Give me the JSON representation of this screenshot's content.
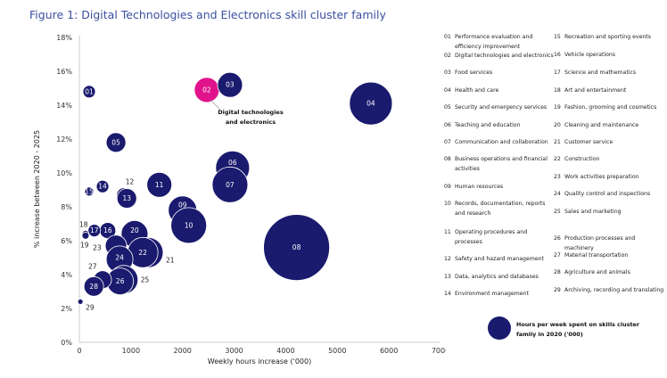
{
  "chart_data": {
    "type": "scatter",
    "subtype": "bubble",
    "title": "Figure 1: Digital Technologies and Electronics skill cluster family",
    "xlabel": "Weekly hours increase ('000)",
    "ylabel": "% increase between 2020 - 2025",
    "xlim": [
      0,
      7000
    ],
    "ylim": [
      0,
      18
    ],
    "xticks": [
      "0",
      "1000",
      "2000",
      "3000",
      "4000",
      "5000",
      "6000",
      "7000"
    ],
    "yticks": [
      "0%",
      "2%",
      "4%",
      "6%",
      "8%",
      "10%",
      "12%",
      "14%",
      "16%",
      "18%"
    ],
    "grid": false,
    "colors": {
      "default": "#1a1a6e",
      "highlight": "#e0138c"
    },
    "size_legend": "Hours per week spent on skills cluster family in 2020 ('000)",
    "annotation": {
      "id": "02",
      "lines": [
        "Digital technologies",
        "and electronics"
      ]
    },
    "points": [
      {
        "id": "01",
        "x": 190,
        "y": 14.8,
        "size": 49,
        "label_inside": true
      },
      {
        "id": "02",
        "x": 2470,
        "y": 14.9,
        "size": 196,
        "label_inside": true,
        "highlight": true
      },
      {
        "id": "03",
        "x": 2920,
        "y": 15.2,
        "size": 196,
        "label_inside": true
      },
      {
        "id": "04",
        "x": 5650,
        "y": 14.1,
        "size": 576,
        "label_inside": true
      },
      {
        "id": "05",
        "x": 710,
        "y": 11.8,
        "size": 121,
        "label_inside": true
      },
      {
        "id": "06",
        "x": 2970,
        "y": 10.3,
        "size": 361,
        "label_inside": true,
        "label_dy": -6
      },
      {
        "id": "07",
        "x": 2920,
        "y": 9.3,
        "size": 400,
        "label_inside": true
      },
      {
        "id": "08",
        "x": 4210,
        "y": 5.6,
        "size": 1369,
        "label_inside": true
      },
      {
        "id": "09",
        "x": 2000,
        "y": 7.8,
        "size": 256,
        "label_inside": true,
        "label_dy": -6
      },
      {
        "id": "10",
        "x": 2120,
        "y": 6.9,
        "size": 400,
        "label_inside": true
      },
      {
        "id": "11",
        "x": 1550,
        "y": 9.3,
        "size": 196,
        "label_inside": true
      },
      {
        "id": "12",
        "x": 860,
        "y": 8.7,
        "size": 64,
        "label_inside": false,
        "ox": 2,
        "oy": -12
      },
      {
        "id": "13",
        "x": 920,
        "y": 8.5,
        "size": 121,
        "label_inside": true
      },
      {
        "id": "14",
        "x": 450,
        "y": 9.2,
        "size": 49,
        "label_inside": true
      },
      {
        "id": "15",
        "x": 190,
        "y": 8.9,
        "size": 25,
        "label_inside": true
      },
      {
        "id": "16",
        "x": 550,
        "y": 6.6,
        "size": 81,
        "label_inside": true
      },
      {
        "id": "17",
        "x": 290,
        "y": 6.6,
        "size": 49,
        "label_inside": true
      },
      {
        "id": "18",
        "x": 120,
        "y": 6.4,
        "size": 16,
        "label_inside": false,
        "ox": -7,
        "oy": -8
      },
      {
        "id": "19",
        "x": 120,
        "y": 6.3,
        "size": 16,
        "label_inside": false,
        "ox": -6,
        "oy": 13
      },
      {
        "id": "20",
        "x": 1070,
        "y": 6.4,
        "size": 225,
        "label_inside": true,
        "label_dy": -4
      },
      {
        "id": "21",
        "x": 1330,
        "y": 5.3,
        "size": 289,
        "label_inside": false,
        "ox": 20,
        "oy": 11
      },
      {
        "id": "22",
        "x": 1230,
        "y": 5.3,
        "size": 289,
        "label_inside": true
      },
      {
        "id": "23",
        "x": 710,
        "y": 5.7,
        "size": 144,
        "label_inside": false,
        "ox": -26,
        "oy": 5
      },
      {
        "id": "24",
        "x": 780,
        "y": 4.9,
        "size": 225,
        "label_inside": true,
        "label_dy": -2
      },
      {
        "id": "25",
        "x": 860,
        "y": 3.7,
        "size": 256,
        "label_inside": false,
        "ox": 19,
        "oy": 3
      },
      {
        "id": "26",
        "x": 790,
        "y": 3.6,
        "size": 225,
        "label_inside": true
      },
      {
        "id": "27",
        "x": 450,
        "y": 3.7,
        "size": 100,
        "label_inside": false,
        "ox": -16,
        "oy": -12
      },
      {
        "id": "28",
        "x": 280,
        "y": 3.3,
        "size": 121,
        "label_inside": true
      },
      {
        "id": "29",
        "x": 20,
        "y": 2.4,
        "size": 9,
        "label_inside": false,
        "ox": 6,
        "oy": 9
      }
    ],
    "legend": [
      {
        "num": "01",
        "text": "Performance evaluation and efficiency improvement"
      },
      {
        "num": "02",
        "text": "Digital technologies and electronics"
      },
      {
        "num": "03",
        "text": "Food services"
      },
      {
        "num": "04",
        "text": "Health and care"
      },
      {
        "num": "05",
        "text": "Security and emergency services"
      },
      {
        "num": "06",
        "text": "Teaching and education"
      },
      {
        "num": "07",
        "text": "Communication and collaboration"
      },
      {
        "num": "08",
        "text": "Business operations and financial activities"
      },
      {
        "num": "09",
        "text": "Human resources"
      },
      {
        "num": "10",
        "text": "Records, documentation, reports and research"
      },
      {
        "num": "11",
        "text": "Operating procedures and processes"
      },
      {
        "num": "12",
        "text": "Safety and hazard management"
      },
      {
        "num": "13",
        "text": "Data, analytics and databases"
      },
      {
        "num": "14",
        "text": "Environment management"
      },
      {
        "num": "15",
        "text": "Recreation and sporting events"
      },
      {
        "num": "16",
        "text": "Vehicle operations"
      },
      {
        "num": "17",
        "text": "Science and mathematics"
      },
      {
        "num": "18",
        "text": "Art and entertainment"
      },
      {
        "num": "19",
        "text": "Fashion, grooming and cosmetics"
      },
      {
        "num": "20",
        "text": "Cleaning and maintenance"
      },
      {
        "num": "21",
        "text": "Customer service"
      },
      {
        "num": "22",
        "text": "Construction"
      },
      {
        "num": "23",
        "text": "Work activities preparation"
      },
      {
        "num": "24",
        "text": "Quality control and inspections"
      },
      {
        "num": "25",
        "text": "Sales and marketing"
      },
      {
        "num": "26",
        "text": "Production processes and machinery"
      },
      {
        "num": "27",
        "text": "Material transportation"
      },
      {
        "num": "28",
        "text": "Agriculture and animals"
      },
      {
        "num": "29",
        "text": "Archiving, recording and translating"
      }
    ]
  }
}
